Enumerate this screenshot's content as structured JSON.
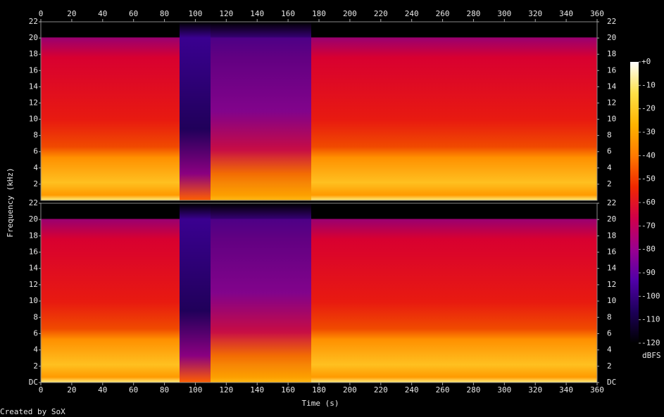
{
  "chart_data": {
    "type": "spectrogram",
    "x_label": "Time (s)",
    "y_label": "Frequency (kHz)",
    "xlim": [
      0,
      360
    ],
    "xticks": [
      0,
      20,
      40,
      60,
      80,
      100,
      120,
      140,
      160,
      180,
      200,
      220,
      240,
      260,
      280,
      300,
      320,
      340,
      360
    ],
    "panels": [
      {
        "ylim": [
          0,
          22
        ],
        "yticks": [
          2,
          4,
          6,
          8,
          10,
          12,
          14,
          16,
          18,
          20,
          22
        ]
      },
      {
        "ylim": [
          0,
          22
        ],
        "yticks": [
          {
            "value": 0,
            "label": "DC"
          },
          2,
          4,
          6,
          8,
          10,
          12,
          14,
          16,
          18,
          20,
          22
        ]
      }
    ],
    "colorbar": {
      "label": "dBFS",
      "lim": [
        -120,
        0
      ],
      "ticks": [
        {
          "value": 0,
          "label": "+0"
        },
        -10,
        -20,
        -30,
        -40,
        -50,
        -60,
        -70,
        -80,
        -90,
        -100,
        -110,
        -120
      ],
      "colormap": [
        "#000000",
        "#1c0058",
        "#5000a8",
        "#9a0090",
        "#d0004a",
        "#f02800",
        "#ff7a00",
        "#ffb400",
        "#ffe048",
        "#ffffff"
      ]
    },
    "credit": "Created by SoX"
  }
}
